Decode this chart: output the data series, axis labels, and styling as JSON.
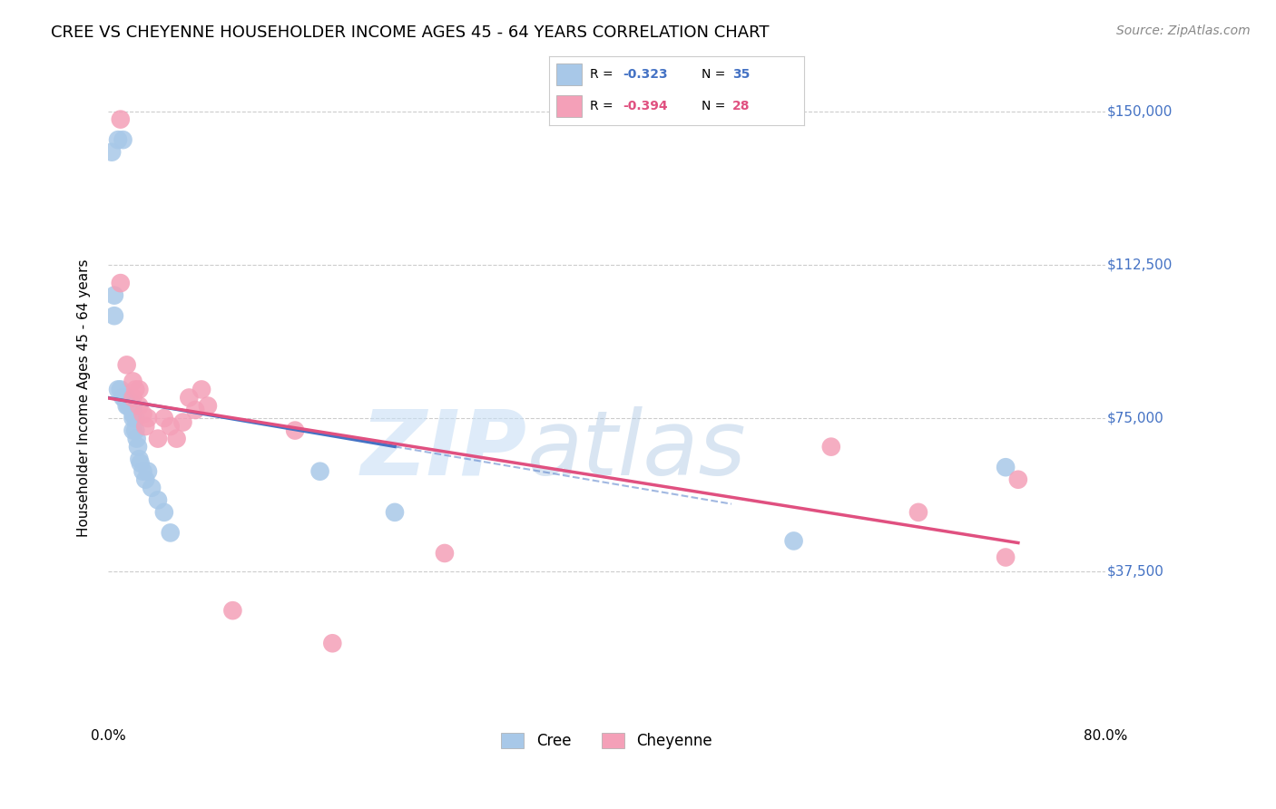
{
  "title": "CREE VS CHEYENNE HOUSEHOLDER INCOME AGES 45 - 64 YEARS CORRELATION CHART",
  "source": "Source: ZipAtlas.com",
  "ylabel": "Householder Income Ages 45 - 64 years",
  "xlim": [
    0.0,
    0.8
  ],
  "ylim": [
    0,
    160000
  ],
  "yticks": [
    37500,
    75000,
    112500,
    150000
  ],
  "ytick_labels": [
    "$37,500",
    "$75,000",
    "$112,500",
    "$150,000"
  ],
  "xticks": [
    0.0,
    0.1,
    0.2,
    0.3,
    0.4,
    0.5,
    0.6,
    0.7,
    0.8
  ],
  "xtick_labels": [
    "0.0%",
    "",
    "",
    "",
    "",
    "",
    "",
    "",
    "80.0%"
  ],
  "cree_color": "#a8c8e8",
  "cheyenne_color": "#f4a0b8",
  "cree_line_color": "#4472c4",
  "cheyenne_line_color": "#e05080",
  "ytick_color": "#4472c4",
  "cree_R": -0.323,
  "cree_N": 35,
  "cheyenne_R": -0.394,
  "cheyenne_N": 28,
  "legend_label_cree": "Cree",
  "legend_label_cheyenne": "Cheyenne",
  "watermark": "ZIPatlas",
  "background_color": "#ffffff",
  "grid_color": "#cccccc",
  "cree_x": [
    0.003,
    0.008,
    0.012,
    0.005,
    0.005,
    0.008,
    0.01,
    0.012,
    0.013,
    0.015,
    0.015,
    0.016,
    0.018,
    0.018,
    0.02,
    0.02,
    0.02,
    0.02,
    0.022,
    0.022,
    0.023,
    0.024,
    0.025,
    0.026,
    0.028,
    0.03,
    0.032,
    0.035,
    0.04,
    0.045,
    0.05,
    0.17,
    0.23,
    0.55,
    0.72
  ],
  "cree_y": [
    140000,
    143000,
    143000,
    105000,
    100000,
    82000,
    82000,
    80000,
    80000,
    80000,
    78000,
    78000,
    79000,
    78000,
    77000,
    76000,
    75000,
    72000,
    75000,
    72000,
    70000,
    68000,
    65000,
    64000,
    62000,
    60000,
    62000,
    58000,
    55000,
    52000,
    47000,
    62000,
    52000,
    45000,
    63000
  ],
  "cheyenne_x": [
    0.01,
    0.01,
    0.015,
    0.02,
    0.02,
    0.022,
    0.025,
    0.025,
    0.028,
    0.03,
    0.032,
    0.04,
    0.045,
    0.05,
    0.055,
    0.06,
    0.065,
    0.07,
    0.075,
    0.08,
    0.1,
    0.15,
    0.18,
    0.27,
    0.58,
    0.65,
    0.72,
    0.73
  ],
  "cheyenne_y": [
    148000,
    108000,
    88000,
    84000,
    80000,
    82000,
    82000,
    78000,
    76000,
    73000,
    75000,
    70000,
    75000,
    73000,
    70000,
    74000,
    80000,
    77000,
    82000,
    78000,
    28000,
    72000,
    20000,
    42000,
    68000,
    52000,
    41000,
    60000
  ]
}
